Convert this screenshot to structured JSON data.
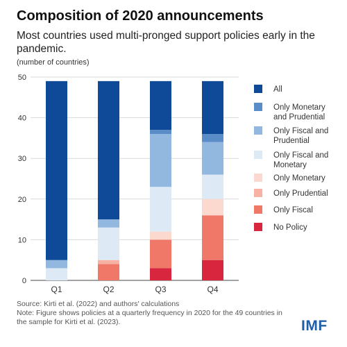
{
  "title": "Composition of 2020 announcements",
  "subtitle": "Most countries used multi-pronged support policies early in the pandemic.",
  "unit_label": "(number of countries)",
  "source": "Source: Kirti et al. (2022) and authors' calculations",
  "note": "Note: Figure shows policies at a quarterly frequency in 2020 for the 49 countries in the sample for Kirti et al. (2023).",
  "logo": "IMF",
  "chart_data": {
    "type": "bar",
    "stacked": true,
    "categories": [
      "Q1",
      "Q2",
      "Q3",
      "Q4"
    ],
    "ylim": [
      0,
      50
    ],
    "yticks": [
      0,
      10,
      20,
      30,
      40,
      50
    ],
    "grid": true,
    "legend_position": "right",
    "series": [
      {
        "name": "No Policy",
        "color": "#d7263d",
        "values": [
          0,
          0,
          3,
          5
        ]
      },
      {
        "name": "Only Fiscal",
        "color": "#f07868",
        "values": [
          0,
          4,
          7,
          11
        ]
      },
      {
        "name": "Only Prudential",
        "color": "#f7b2a4",
        "values": [
          0,
          1,
          0,
          0
        ]
      },
      {
        "name": "Only Monetary",
        "color": "#fcd9cf",
        "values": [
          0,
          0,
          2,
          4
        ]
      },
      {
        "name": "Only Fiscal and Monetary",
        "color": "#dde9f5",
        "values": [
          3,
          8,
          11,
          6
        ]
      },
      {
        "name": "Only Fiscal and Prudential",
        "color": "#92b8df",
        "values": [
          2,
          2,
          13,
          8
        ]
      },
      {
        "name": "Only Monetary and Prudential",
        "color": "#5a8cc7",
        "values": [
          0,
          0,
          1,
          2
        ]
      },
      {
        "name": "All",
        "color": "#0e4a98",
        "values": [
          44,
          34,
          12,
          13
        ]
      }
    ],
    "legend_order": [
      {
        "label": [
          "All"
        ],
        "color": "#0e4a98"
      },
      {
        "label": [
          "Only Monetary",
          "and Prudential"
        ],
        "color": "#5a8cc7"
      },
      {
        "label": [
          "Only Fiscal and",
          "Prudential"
        ],
        "color": "#92b8df"
      },
      {
        "label": [
          "Only Fiscal and",
          "Monetary"
        ],
        "color": "#dde9f5"
      },
      {
        "label": [
          "Only Monetary"
        ],
        "color": "#fcd9cf"
      },
      {
        "label": [
          "Only Prudential"
        ],
        "color": "#f7b2a4"
      },
      {
        "label": [
          "Only Fiscal"
        ],
        "color": "#f07868"
      },
      {
        "label": [
          "No Policy"
        ],
        "color": "#d7263d"
      }
    ]
  }
}
